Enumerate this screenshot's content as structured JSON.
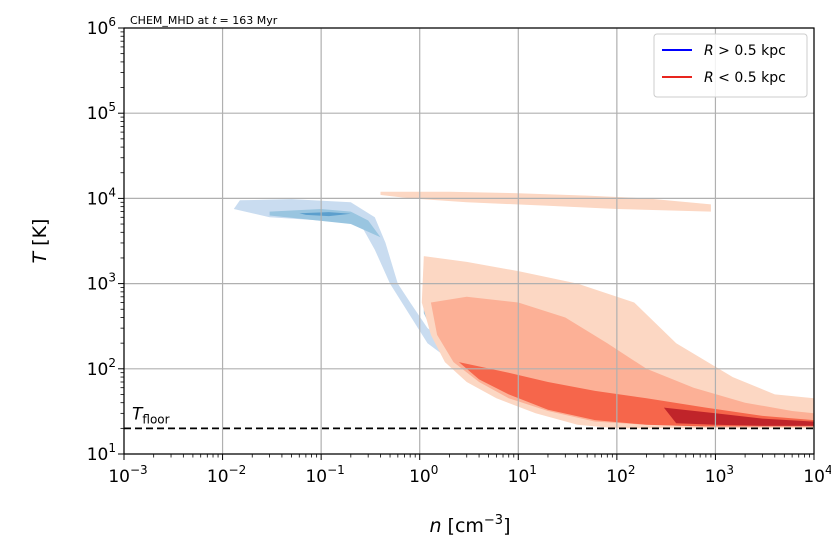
{
  "chart_data": {
    "type": "contour",
    "annotation_prefix": "CHEM_MHD at ",
    "annotation_time_var": "t",
    "annotation_time_value": "= 163 Myr",
    "xlabel_var": "n",
    "xlabel_unit": "[cm",
    "xlabel_unit_exp": "−3",
    "xlabel_unit_close": "]",
    "ylabel_var": "T",
    "ylabel_unit": "[K]",
    "xscale": "log",
    "yscale": "log",
    "xlim": [
      0.001,
      10000
    ],
    "ylim": [
      10,
      1000000
    ],
    "xtick_exponents": [
      "−3",
      "−2",
      "−1",
      "0",
      "1",
      "2",
      "3",
      "4"
    ],
    "ytick_exponents": [
      "1",
      "2",
      "3",
      "4",
      "5",
      "6"
    ],
    "grid": true,
    "legend_position": "top-right",
    "legend": [
      {
        "label_var": "R",
        "label_rest": " > 0.5 kpc",
        "color": "#0000ff"
      },
      {
        "label_var": "R",
        "label_rest": " < 0.5 kpc",
        "color": "#e8251e"
      }
    ],
    "floor_line": {
      "y": 20,
      "label_base": "T",
      "label_sub": "floor",
      "color": "#000000",
      "style": "dashed"
    },
    "series": [
      {
        "name": "R > 0.5 kpc",
        "colormap": "Blues",
        "levels": [
          {
            "color": "#c9dcf0",
            "points": [
              [
                0.013,
                7500
              ],
              [
                0.015,
                9500
              ],
              [
                0.05,
                9800
              ],
              [
                0.2,
                9000
              ],
              [
                0.35,
                6000
              ],
              [
                0.45,
                3000
              ],
              [
                0.6,
                1000
              ],
              [
                0.8,
                600
              ],
              [
                1.2,
                300
              ],
              [
                2,
                200
              ],
              [
                5,
                120
              ],
              [
                10,
                80
              ],
              [
                30,
                50
              ],
              [
                100,
                32
              ],
              [
                500,
                24
              ],
              [
                2000,
                21
              ],
              [
                6000,
                20
              ],
              [
                6000,
                20.5
              ],
              [
                2000,
                22
              ],
              [
                500,
                25
              ],
              [
                100,
                28
              ],
              [
                40,
                32
              ],
              [
                15,
                45
              ],
              [
                6,
                60
              ],
              [
                3,
                90
              ],
              [
                1.8,
                140
              ],
              [
                1.2,
                200
              ],
              [
                0.8,
                420
              ],
              [
                0.5,
                1000
              ],
              [
                0.35,
                2500
              ],
              [
                0.25,
                5000
              ],
              [
                0.1,
                5500
              ],
              [
                0.03,
                6000
              ]
            ]
          },
          {
            "color": "#99c5e0",
            "points": [
              [
                0.03,
                7000
              ],
              [
                0.1,
                7500
              ],
              [
                0.2,
                7000
              ],
              [
                0.3,
                5500
              ],
              [
                0.4,
                3500
              ],
              [
                0.2,
                5000
              ],
              [
                0.08,
                5600
              ],
              [
                0.03,
                6300
              ]
            ]
          },
          {
            "color": "#99c5e0",
            "points": [
              [
                1.1,
                900
              ],
              [
                1.6,
                500
              ],
              [
                2.5,
                300
              ],
              [
                5,
                180
              ],
              [
                10,
                120
              ],
              [
                30,
                80
              ],
              [
                100,
                50
              ],
              [
                400,
                30
              ],
              [
                1000,
                24
              ],
              [
                1000,
                23
              ],
              [
                300,
                25
              ],
              [
                100,
                28
              ],
              [
                30,
                33
              ],
              [
                10,
                45
              ],
              [
                5,
                65
              ],
              [
                3,
                100
              ],
              [
                2,
                150
              ],
              [
                1.4,
                250
              ],
              [
                1.1,
                450
              ]
            ]
          },
          {
            "color": "#5c9fcd",
            "points": [
              [
                2,
                300
              ],
              [
                3,
                240
              ],
              [
                5,
                170
              ],
              [
                10,
                120
              ],
              [
                20,
                90
              ],
              [
                60,
                55
              ],
              [
                150,
                35
              ],
              [
                200,
                30
              ],
              [
                150,
                28
              ],
              [
                60,
                32
              ],
              [
                20,
                45
              ],
              [
                8,
                65
              ],
              [
                4,
                90
              ],
              [
                2.5,
                130
              ],
              [
                1.9,
                200
              ]
            ]
          },
          {
            "color": "#5c9fcd",
            "points": [
              [
                0.06,
                6700
              ],
              [
                0.12,
                6900
              ],
              [
                0.2,
                6600
              ],
              [
                0.12,
                6200
              ],
              [
                0.07,
                6400
              ]
            ]
          },
          {
            "color": "#2b79b8",
            "points": [
              [
                3,
                180
              ],
              [
                6,
                140
              ],
              [
                12,
                110
              ],
              [
                30,
                80
              ],
              [
                60,
                55
              ],
              [
                80,
                45
              ],
              [
                60,
                40
              ],
              [
                25,
                55
              ],
              [
                10,
                80
              ],
              [
                5,
                110
              ],
              [
                3.2,
                150
              ]
            ]
          },
          {
            "color": "#08519c",
            "points": [
              [
                8,
                120
              ],
              [
                15,
                100
              ],
              [
                30,
                75
              ],
              [
                60,
                50
              ],
              [
                75,
                42
              ],
              [
                55,
                40
              ],
              [
                25,
                55
              ],
              [
                12,
                80
              ],
              [
                8,
                105
              ]
            ]
          }
        ]
      },
      {
        "name": "R < 0.5 kpc",
        "colormap": "Reds",
        "levels": [
          {
            "color": "#fcd7c3",
            "points": [
              [
                0.4,
                12000
              ],
              [
                2,
                12000
              ],
              [
                10,
                11500
              ],
              [
                50,
                10800
              ],
              [
                200,
                10000
              ],
              [
                900,
                8500
              ],
              [
                900,
                7000
              ],
              [
                100,
                7500
              ],
              [
                20,
                8200
              ],
              [
                3,
                9000
              ],
              [
                0.8,
                10000
              ],
              [
                0.4,
                11000
              ]
            ]
          },
          {
            "color": "#fcd7c3",
            "points": [
              [
                1.1,
                2100
              ],
              [
                3,
                1800
              ],
              [
                10,
                1400
              ],
              [
                40,
                1000
              ],
              [
                150,
                600
              ],
              [
                400,
                200
              ],
              [
                1500,
                80
              ],
              [
                4000,
                50
              ],
              [
                10000,
                45
              ],
              [
                10000,
                20
              ],
              [
                3000,
                20
              ],
              [
                1000,
                20
              ],
              [
                300,
                20
              ],
              [
                100,
                20
              ],
              [
                40,
                22
              ],
              [
                15,
                30
              ],
              [
                6,
                45
              ],
              [
                3,
                70
              ],
              [
                1.8,
                120
              ],
              [
                1.3,
                250
              ],
              [
                1.05,
                600
              ]
            ]
          },
          {
            "color": "#fcb096",
            "points": [
              [
                1.3,
                600
              ],
              [
                3,
                700
              ],
              [
                10,
                600
              ],
              [
                30,
                400
              ],
              [
                80,
                200
              ],
              [
                200,
                100
              ],
              [
                600,
                60
              ],
              [
                2000,
                40
              ],
              [
                6000,
                32
              ],
              [
                10000,
                30
              ],
              [
                10000,
                21
              ],
              [
                3000,
                21
              ],
              [
                800,
                21
              ],
              [
                200,
                22
              ],
              [
                60,
                24
              ],
              [
                20,
                32
              ],
              [
                8,
                45
              ],
              [
                4,
                70
              ],
              [
                2.2,
                120
              ],
              [
                1.5,
                250
              ]
            ]
          },
          {
            "color": "#f6664b",
            "points": [
              [
                2.5,
                120
              ],
              [
                8,
                90
              ],
              [
                20,
                70
              ],
              [
                60,
                55
              ],
              [
                200,
                45
              ],
              [
                800,
                35
              ],
              [
                3000,
                28
              ],
              [
                10000,
                25
              ],
              [
                10000,
                21
              ],
              [
                3000,
                21
              ],
              [
                800,
                21
              ],
              [
                200,
                22
              ],
              [
                60,
                25
              ],
              [
                20,
                33
              ],
              [
                8,
                50
              ],
              [
                4,
                75
              ]
            ]
          },
          {
            "color": "#c0242a",
            "points": [
              [
                300,
                35
              ],
              [
                1000,
                30
              ],
              [
                3000,
                26
              ],
              [
                10000,
                24
              ],
              [
                10000,
                21.5
              ],
              [
                3000,
                21.5
              ],
              [
                1000,
                22
              ],
              [
                400,
                23
              ]
            ]
          }
        ]
      }
    ]
  }
}
